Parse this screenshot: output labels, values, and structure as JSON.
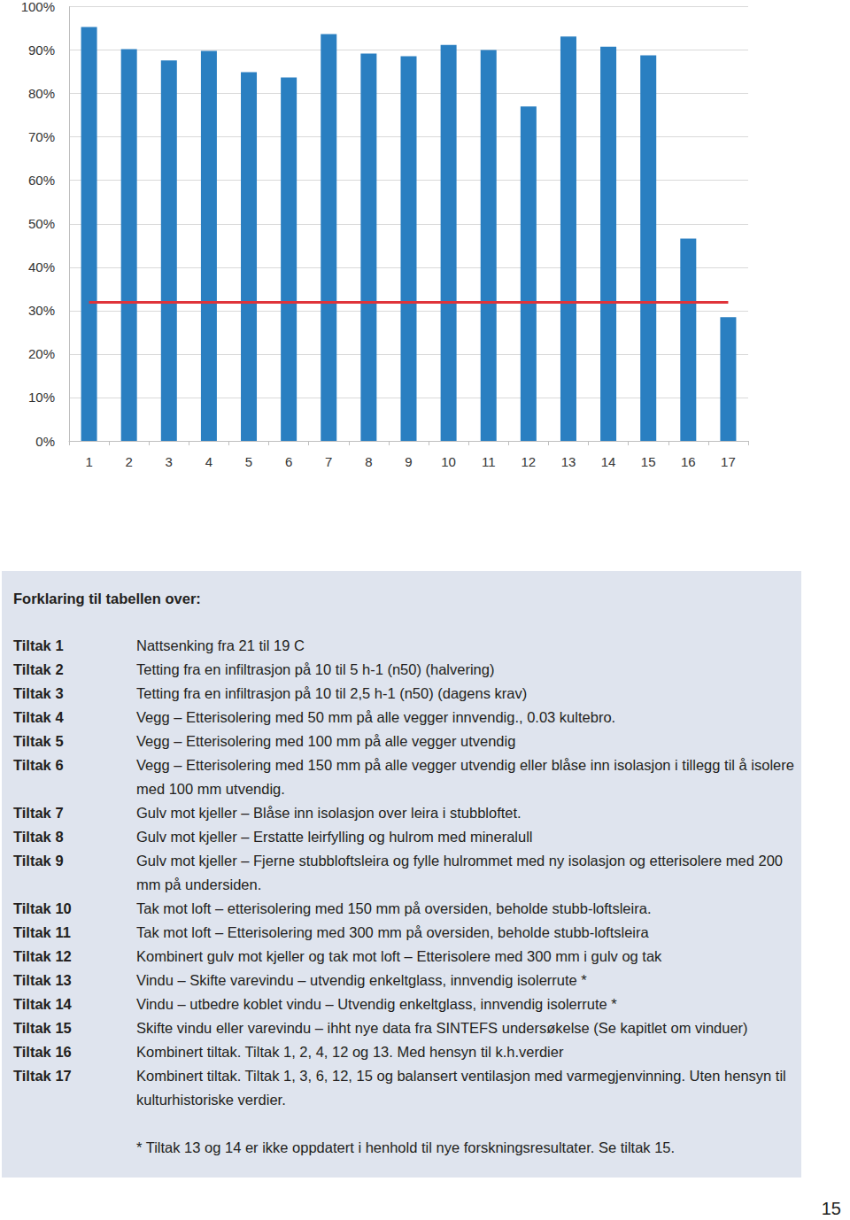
{
  "chart_data": {
    "type": "bar",
    "categories": [
      "1",
      "2",
      "3",
      "4",
      "5",
      "6",
      "7",
      "8",
      "9",
      "10",
      "11",
      "12",
      "13",
      "14",
      "15",
      "16",
      "17"
    ],
    "values": [
      95.3,
      90.2,
      87.6,
      89.8,
      84.9,
      83.7,
      93.7,
      89.2,
      88.6,
      91.2,
      90.0,
      77.0,
      93.1,
      90.8,
      88.8,
      46.6,
      28.5
    ],
    "color": "#2a7fc1",
    "ylim": [
      0,
      100
    ],
    "yticks": [
      {
        "value": 0,
        "label": "0%"
      },
      {
        "value": 10,
        "label": "10%"
      },
      {
        "value": 20,
        "label": "20%"
      },
      {
        "value": 30,
        "label": "30%"
      },
      {
        "value": 40,
        "label": "40%"
      },
      {
        "value": 50,
        "label": "50%"
      },
      {
        "value": 60,
        "label": "60%"
      },
      {
        "value": 70,
        "label": "70%"
      },
      {
        "value": 80,
        "label": "80%"
      },
      {
        "value": 90,
        "label": "90%"
      },
      {
        "value": 100,
        "label": "100%"
      }
    ],
    "grid": true,
    "reference_line": {
      "value": 32,
      "color": "#e0343a"
    }
  },
  "legend_box": {
    "title": "Forklaring til tabellen over:",
    "rows": [
      {
        "label": "Tiltak 1",
        "text": "Nattsenking fra 21 til 19 C"
      },
      {
        "label": "Tiltak 2",
        "text": "Tetting fra en infiltrasjon på 10 til 5 h-1 (n50) (halvering)"
      },
      {
        "label": "Tiltak 3",
        "text": "Tetting fra en infiltrasjon på 10 til 2,5 h-1 (n50) (dagens krav)"
      },
      {
        "label": "Tiltak 4",
        "text": "Vegg – Etterisolering med 50 mm på alle vegger innvendig., 0.03 kultebro."
      },
      {
        "label": "Tiltak 5",
        "text": "Vegg – Etterisolering med 100 mm på alle vegger utvendig"
      },
      {
        "label": "Tiltak 6",
        "text": "Vegg – Etterisolering med 150 mm på alle vegger utvendig eller blåse inn isolasjon i tillegg til å isolere med 100 mm utvendig."
      },
      {
        "label": "Tiltak 7",
        "text": "Gulv mot kjeller – Blåse inn isolasjon over leira i stubbloftet."
      },
      {
        "label": "Tiltak 8",
        "text": "Gulv mot kjeller – Erstatte leirfylling og hulrom med mineralull"
      },
      {
        "label": "Tiltak 9",
        "text": "Gulv mot kjeller – Fjerne stubbloftsleira og fylle hulrommet med ny isolasjon og etterisolere med 200 mm på undersiden."
      },
      {
        "label": "Tiltak 10",
        "text": "Tak mot loft – etterisolering med 150 mm på oversiden, beholde stubb-loftsleira."
      },
      {
        "label": "Tiltak 11",
        "text": "Tak mot loft – Etterisolering med 300 mm på oversiden, beholde stubb-loftsleira"
      },
      {
        "label": "Tiltak 12",
        "text": "Kombinert gulv mot kjeller og tak mot loft – Etterisolere med 300 mm i gulv og tak"
      },
      {
        "label": "Tiltak 13",
        "text": "Vindu – Skifte varevindu – utvendig enkeltglass, innvendig isolerrute *"
      },
      {
        "label": "Tiltak 14",
        "text": "Vindu – utbedre koblet vindu – Utvendig enkeltglass, innvendig isolerrute *"
      },
      {
        "label": "Tiltak 15",
        "text": "Skifte vindu eller varevindu – ihht nye data fra SINTEFS undersøkelse (Se kapitlet om vinduer)"
      },
      {
        "label": "Tiltak 16",
        "text": "Kombinert tiltak. Tiltak 1, 2, 4, 12 og 13. Med hensyn til k.h.verdier"
      },
      {
        "label": "Tiltak 17",
        "text": "Kombinert tiltak. Tiltak 1, 3, 6, 12, 15 og balansert ventilasjon med varmegjenvinning. Uten hensyn til kulturhistoriske verdier."
      }
    ],
    "footnote": "* Tiltak 13 og 14 er ikke oppdatert i henhold til nye forskningsresultater. Se tiltak 15."
  },
  "page_number": "15"
}
